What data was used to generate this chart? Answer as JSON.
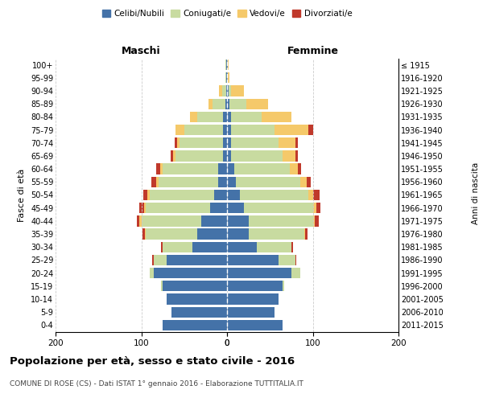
{
  "age_groups": [
    "0-4",
    "5-9",
    "10-14",
    "15-19",
    "20-24",
    "25-29",
    "30-34",
    "35-39",
    "40-44",
    "45-49",
    "50-54",
    "55-59",
    "60-64",
    "65-69",
    "70-74",
    "75-79",
    "80-84",
    "85-89",
    "90-94",
    "95-99",
    "100+"
  ],
  "birth_years": [
    "2011-2015",
    "2006-2010",
    "2001-2005",
    "1996-2000",
    "1991-1995",
    "1986-1990",
    "1981-1985",
    "1976-1980",
    "1971-1975",
    "1966-1970",
    "1961-1965",
    "1956-1960",
    "1951-1955",
    "1946-1950",
    "1941-1945",
    "1936-1940",
    "1931-1935",
    "1926-1930",
    "1921-1925",
    "1916-1920",
    "≤ 1915"
  ],
  "maschi": {
    "celibi": [
      75,
      65,
      70,
      75,
      85,
      70,
      40,
      35,
      30,
      20,
      15,
      10,
      10,
      5,
      5,
      5,
      5,
      2,
      1,
      1,
      1
    ],
    "coniugati": [
      0,
      0,
      0,
      2,
      5,
      15,
      35,
      60,
      70,
      75,
      75,
      70,
      65,
      55,
      50,
      45,
      30,
      15,
      5,
      1,
      1
    ],
    "vedovi": [
      0,
      0,
      0,
      0,
      0,
      0,
      0,
      1,
      2,
      2,
      3,
      3,
      3,
      3,
      3,
      10,
      8,
      5,
      3,
      0,
      0
    ],
    "divorziati": [
      0,
      0,
      0,
      0,
      0,
      2,
      2,
      3,
      3,
      5,
      5,
      5,
      5,
      3,
      3,
      0,
      0,
      0,
      0,
      0,
      0
    ]
  },
  "femmine": {
    "celibi": [
      65,
      55,
      60,
      65,
      75,
      60,
      35,
      25,
      25,
      20,
      15,
      10,
      8,
      5,
      5,
      5,
      5,
      3,
      2,
      1,
      1
    ],
    "coniugati": [
      0,
      0,
      0,
      2,
      10,
      20,
      40,
      65,
      75,
      80,
      80,
      75,
      65,
      60,
      55,
      50,
      35,
      20,
      3,
      0,
      0
    ],
    "vedovi": [
      0,
      0,
      0,
      0,
      0,
      0,
      0,
      1,
      2,
      4,
      5,
      8,
      10,
      15,
      20,
      40,
      35,
      25,
      15,
      2,
      1
    ],
    "divorziati": [
      0,
      0,
      0,
      0,
      0,
      1,
      2,
      3,
      5,
      5,
      8,
      5,
      3,
      3,
      3,
      5,
      0,
      0,
      0,
      0,
      0
    ]
  },
  "colors": {
    "celibi": "#4472a8",
    "coniugati": "#c8dba0",
    "vedovi": "#f5c96a",
    "divorziati": "#c0392b"
  },
  "legend_labels": [
    "Celibi/Nubili",
    "Coniugati/e",
    "Vedovi/e",
    "Divorziati/e"
  ],
  "xlim": 200,
  "title": "Popolazione per età, sesso e stato civile - 2016",
  "subtitle": "COMUNE DI ROSE (CS) - Dati ISTAT 1° gennaio 2016 - Elaborazione TUTTITALIA.IT",
  "ylabel_left": "Fasce di età",
  "ylabel_right": "Anni di nascita",
  "xlabel_maschi": "Maschi",
  "xlabel_femmine": "Femmine",
  "bg_color": "#ffffff",
  "grid_color": "#cccccc"
}
